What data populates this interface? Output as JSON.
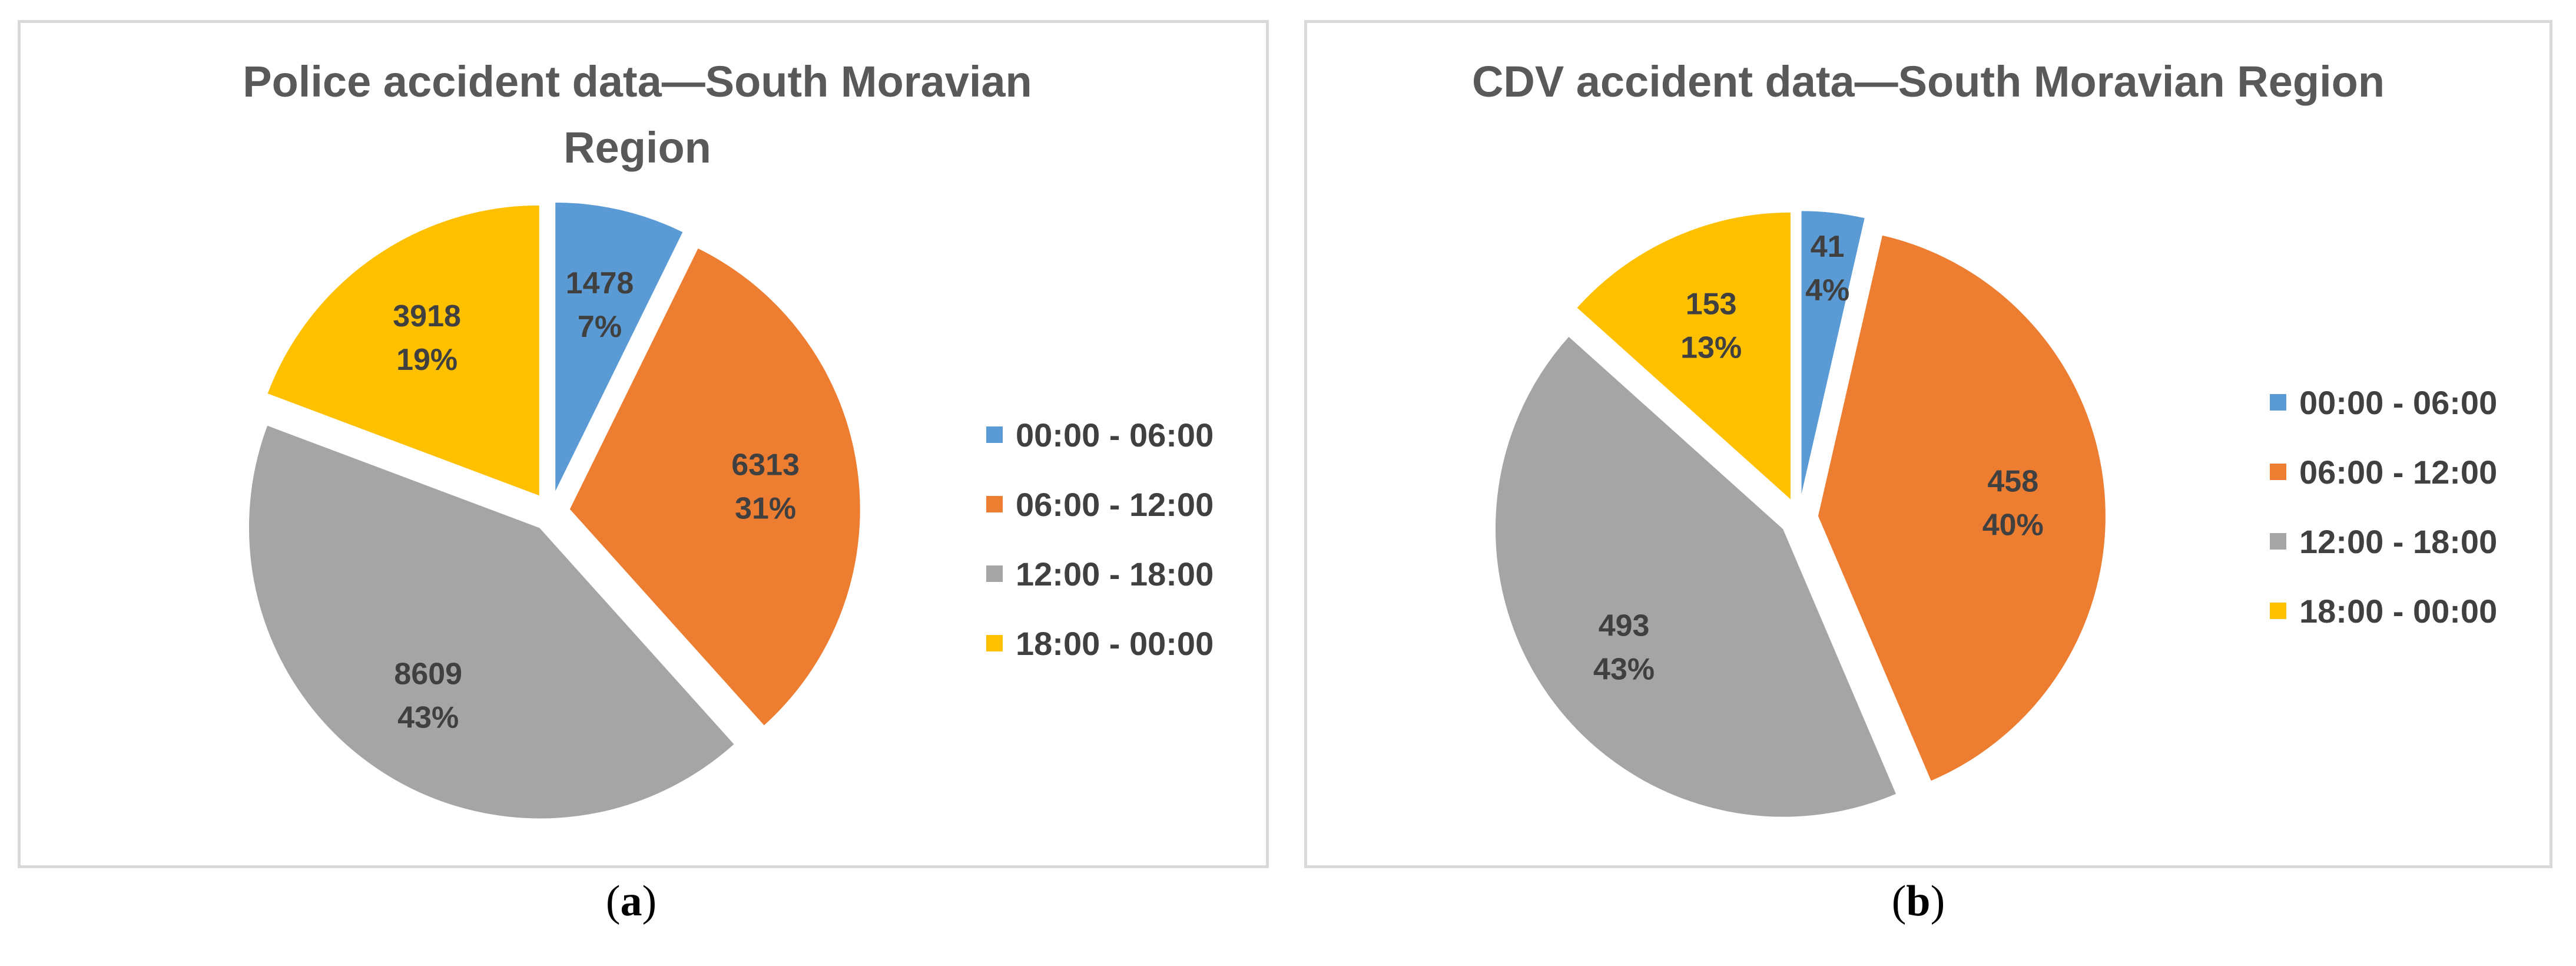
{
  "colors": {
    "c1": "#5B9BD5",
    "c2": "#ED7D31",
    "c3": "#A5A5A5",
    "c4": "#FFC000"
  },
  "chart_data": [
    {
      "type": "pie",
      "title": "Police accident data—South Moravian Region",
      "categories": [
        "00:00 - 06:00",
        "06:00 - 12:00",
        "12:00 - 18:00",
        "18:00 - 00:00"
      ],
      "values": [
        1478,
        6313,
        8609,
        3918
      ],
      "value_labels": [
        "1478",
        "6313",
        "8609",
        "3918"
      ],
      "percent_labels": [
        "7%",
        "31%",
        "43%",
        "19%"
      ],
      "legend_position": "right",
      "caption_letter": "a"
    },
    {
      "type": "pie",
      "title": "CDV accident data—South Moravian Region",
      "categories": [
        "00:00 - 06:00",
        "06:00 - 12:00",
        "12:00 - 18:00",
        "18:00 - 00:00"
      ],
      "values": [
        41,
        458,
        493,
        153
      ],
      "value_labels": [
        "41",
        "458",
        "493",
        "153"
      ],
      "percent_labels": [
        "4%",
        "40%",
        "43%",
        "13%"
      ],
      "legend_position": "right",
      "caption_letter": "b"
    }
  ],
  "captions": {
    "a": {
      "open": "(",
      "letter": "a",
      "close": ")"
    },
    "b": {
      "open": "(",
      "letter": "b",
      "close": ")"
    }
  }
}
